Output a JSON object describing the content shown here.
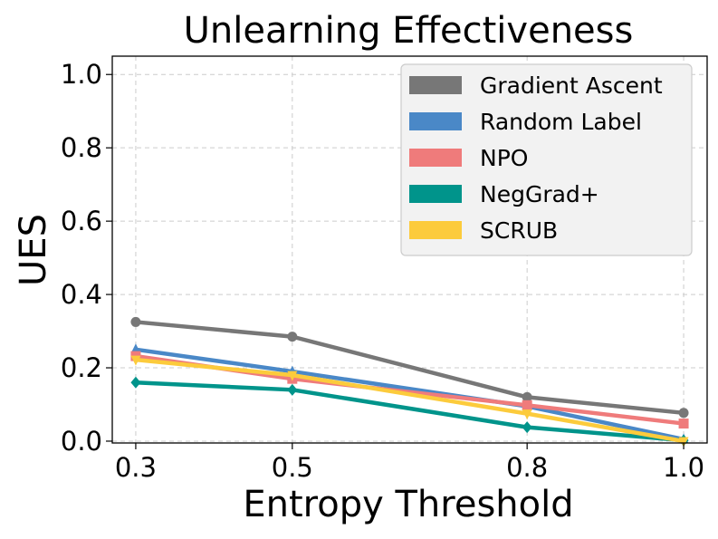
{
  "chart_data": {
    "type": "line",
    "title": "Unlearning Effectiveness",
    "xlabel": "Entropy Threshold",
    "ylabel": "UES",
    "x": [
      0.3,
      0.5,
      0.8,
      1.0
    ],
    "x_tick_labels": [
      "0.3",
      "0.5",
      "0.8",
      "1.0"
    ],
    "y_ticks": [
      0.0,
      0.2,
      0.4,
      0.6,
      0.8,
      1.0
    ],
    "y_tick_labels": [
      "0.0",
      "0.2",
      "0.4",
      "0.6",
      "0.8",
      "1.0"
    ],
    "xlim": [
      0.27,
      1.03
    ],
    "ylim": [
      -0.005,
      1.05
    ],
    "grid": true,
    "legend_position": "top-right",
    "series": [
      {
        "name": "Gradient Ascent",
        "color": "#777777",
        "marker": "circle",
        "values": [
          0.325,
          0.285,
          0.12,
          0.077
        ]
      },
      {
        "name": "Random Label",
        "color": "#4a88c7",
        "marker": "triangle",
        "values": [
          0.25,
          0.19,
          0.095,
          0.005
        ]
      },
      {
        "name": "NPO",
        "color": "#ef7b7b",
        "marker": "square",
        "values": [
          0.232,
          0.17,
          0.098,
          0.048
        ]
      },
      {
        "name": "NegGrad+",
        "color": "#00948b",
        "marker": "diamond",
        "values": [
          0.16,
          0.14,
          0.038,
          0.002
        ]
      },
      {
        "name": "SCRUB",
        "color": "#fccb3c",
        "marker": "down-triangle",
        "values": [
          0.222,
          0.18,
          0.075,
          0.0
        ]
      }
    ]
  }
}
